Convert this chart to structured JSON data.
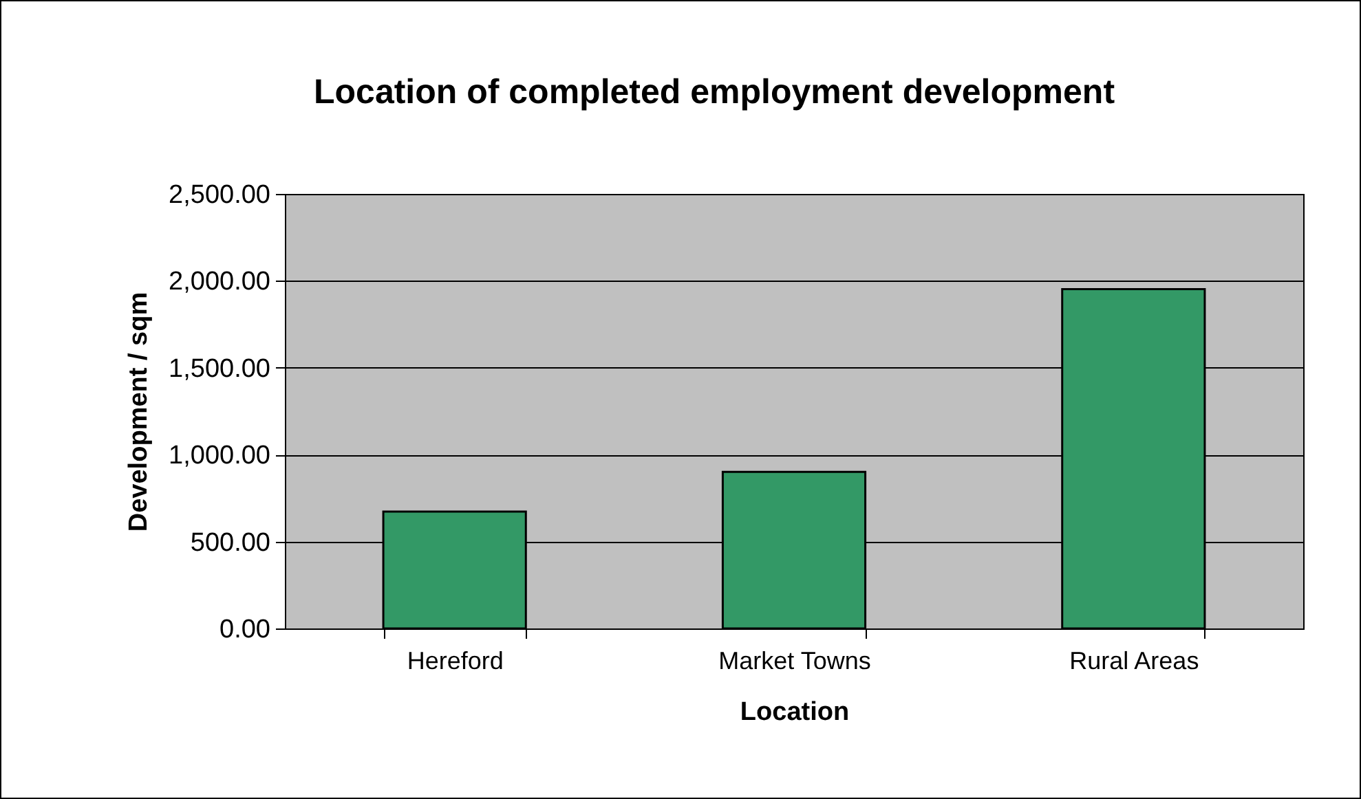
{
  "chart_data": {
    "type": "bar",
    "title": "Location of completed employment development",
    "xlabel": "Location",
    "ylabel": "Development / sqm",
    "categories": [
      "Hereford",
      "Market Towns",
      "Rural Areas"
    ],
    "values": [
      672,
      901,
      1952
    ],
    "color": "#339966",
    "ylim": [
      0,
      2500
    ],
    "yticks": [
      {
        "value": 0,
        "label": "0.00"
      },
      {
        "value": 500,
        "label": "500.00"
      },
      {
        "value": 1000,
        "label": "1,000.00"
      },
      {
        "value": 1500,
        "label": "1,500.00"
      },
      {
        "value": 2000,
        "label": "2,000.00"
      },
      {
        "value": 2500,
        "label": "2,500.00"
      }
    ],
    "grid": "y"
  }
}
